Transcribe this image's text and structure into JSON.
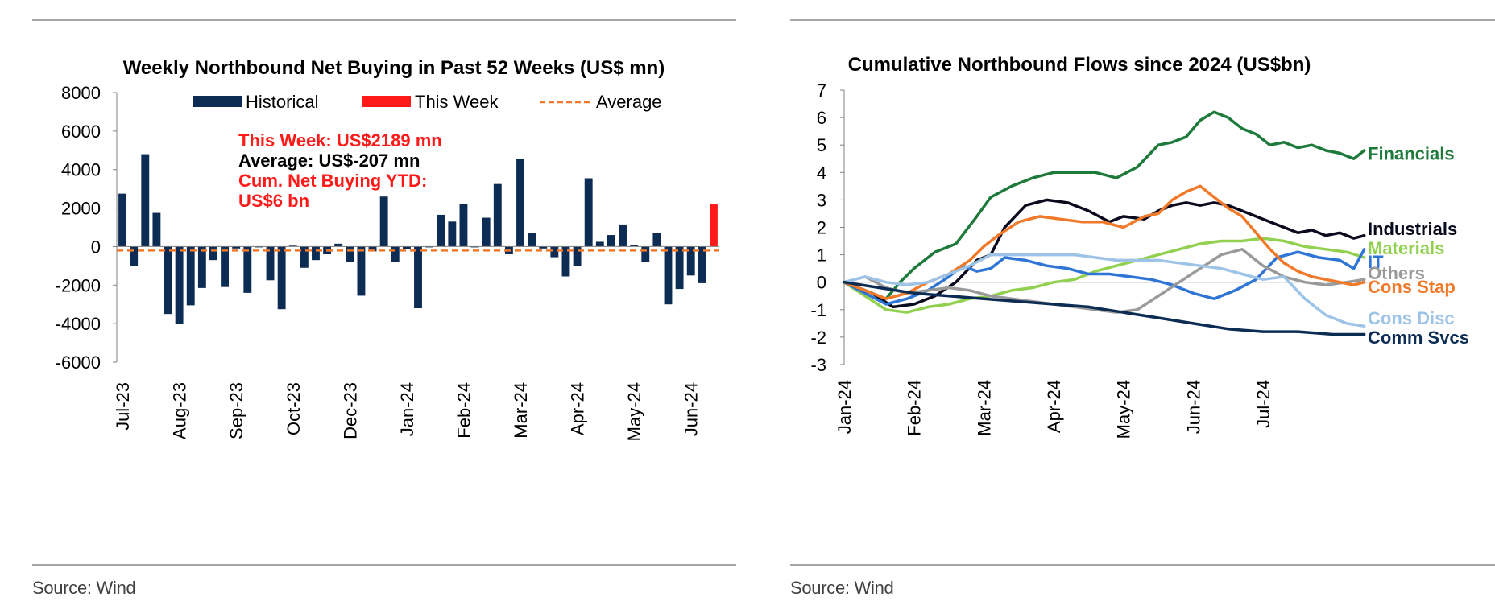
{
  "chart_data": [
    {
      "type": "bar",
      "title": "Weekly Northbound Net Buying in Past 52 Weeks (US$ mn)",
      "legend": [
        "Historical",
        "This Week",
        "Average"
      ],
      "legend_placement": "top",
      "colors": {
        "historical": "#0c2c54",
        "this_week": "#ff1a1a",
        "average": "#f07a2a"
      },
      "ylim": [
        -6000,
        8000
      ],
      "yticks": [
        8000,
        6000,
        4000,
        2000,
        0,
        -2000,
        -4000,
        -6000
      ],
      "xtick_labels": [
        "Jul-23",
        "Aug-23",
        "Sep-23",
        "Oct-23",
        "Dec-23",
        "Jan-24",
        "Feb-24",
        "Mar-24",
        "Apr-24",
        "May-24",
        "Jun-24"
      ],
      "xtick_positions": [
        0,
        5,
        10,
        15,
        20,
        25,
        30,
        35,
        40,
        45,
        50
      ],
      "values": [
        2750,
        -1000,
        4800,
        1750,
        -3500,
        -4000,
        -3050,
        -2150,
        -700,
        -2100,
        -100,
        -2400,
        0,
        -1750,
        -3250,
        50,
        -1100,
        -700,
        -400,
        150,
        -800,
        -2550,
        -250,
        2600,
        -800,
        -150,
        -3200,
        0,
        1650,
        1300,
        2200,
        0,
        1500,
        3250,
        -400,
        4550,
        700,
        -100,
        -550,
        -1550,
        -1000,
        3550,
        250,
        600,
        1150,
        100,
        -800,
        700,
        -3000,
        -2200,
        -1500,
        -1900,
        2189
      ],
      "average": -207,
      "annotations": {
        "this_week": "This Week: US$2189 mn",
        "average": "Average: US$-207 mn",
        "ytd_line1": "Cum. Net Buying YTD:",
        "ytd_line2": "US$6 bn"
      }
    },
    {
      "type": "line",
      "title": "Cumulative Northbound Flows since 2024 (US$bn)",
      "ylim": [
        -3,
        7
      ],
      "yticks": [
        7,
        6,
        5,
        4,
        3,
        2,
        1,
        0,
        -1,
        -2,
        -3
      ],
      "xlim": [
        0,
        7.5
      ],
      "xtick_labels": [
        "Jan-24",
        "Feb-24",
        "Mar-24",
        "Apr-24",
        "May-24",
        "Jun-24",
        "Jul-24"
      ],
      "series": [
        {
          "name": "Financials",
          "color": "#1e7a3a",
          "x": [
            0,
            0.3,
            0.6,
            0.8,
            1.0,
            1.3,
            1.6,
            1.9,
            2.1,
            2.4,
            2.7,
            3.0,
            3.3,
            3.6,
            3.9,
            4.2,
            4.5,
            4.7,
            4.9,
            5.1,
            5.3,
            5.5,
            5.7,
            5.9,
            6.1,
            6.3,
            6.5,
            6.7,
            6.9,
            7.1,
            7.3,
            7.45
          ],
          "y": [
            0,
            -0.3,
            -0.6,
            0,
            0.5,
            1.1,
            1.4,
            2.4,
            3.1,
            3.5,
            3.8,
            4.0,
            4.0,
            4.0,
            3.8,
            4.2,
            5.0,
            5.1,
            5.3,
            5.9,
            6.2,
            6.0,
            5.6,
            5.4,
            5.0,
            5.1,
            4.9,
            5.0,
            4.8,
            4.7,
            4.5,
            4.8
          ]
        },
        {
          "name": "Industrials",
          "color": "#0a0a1e",
          "x": [
            0,
            0.4,
            0.7,
            1.0,
            1.3,
            1.6,
            1.9,
            2.1,
            2.3,
            2.6,
            2.9,
            3.2,
            3.5,
            3.8,
            4.0,
            4.3,
            4.5,
            4.7,
            4.9,
            5.1,
            5.3,
            5.5,
            5.7,
            5.9,
            6.1,
            6.3,
            6.5,
            6.7,
            6.9,
            7.1,
            7.3,
            7.45
          ],
          "y": [
            0,
            -0.4,
            -0.9,
            -0.8,
            -0.5,
            0,
            0.8,
            1.0,
            2.0,
            2.8,
            3.0,
            2.9,
            2.6,
            2.2,
            2.4,
            2.3,
            2.6,
            2.8,
            2.9,
            2.8,
            2.9,
            2.8,
            2.6,
            2.4,
            2.2,
            2.0,
            1.8,
            1.9,
            1.7,
            1.8,
            1.6,
            1.7
          ]
        },
        {
          "name": "Materials",
          "color": "#92d050",
          "x": [
            0,
            0.3,
            0.6,
            0.9,
            1.2,
            1.5,
            1.8,
            2.1,
            2.4,
            2.7,
            3.0,
            3.3,
            3.6,
            3.9,
            4.2,
            4.5,
            4.8,
            5.1,
            5.4,
            5.7,
            6.0,
            6.3,
            6.6,
            6.9,
            7.2,
            7.45
          ],
          "y": [
            0,
            -0.5,
            -1.0,
            -1.1,
            -0.9,
            -0.8,
            -0.6,
            -0.5,
            -0.3,
            -0.2,
            0,
            0.1,
            0.4,
            0.6,
            0.8,
            1.0,
            1.2,
            1.4,
            1.5,
            1.5,
            1.6,
            1.5,
            1.3,
            1.2,
            1.1,
            0.9
          ]
        },
        {
          "name": "IT",
          "color": "#2e75d6",
          "x": [
            0,
            0.3,
            0.6,
            0.9,
            1.2,
            1.5,
            1.7,
            1.9,
            2.1,
            2.3,
            2.6,
            2.9,
            3.2,
            3.5,
            3.8,
            4.1,
            4.4,
            4.7,
            5.0,
            5.3,
            5.6,
            5.9,
            6.2,
            6.5,
            6.8,
            7.1,
            7.3,
            7.45
          ],
          "y": [
            0,
            -0.4,
            -0.8,
            -0.6,
            -0.3,
            0.2,
            0.6,
            0.4,
            0.5,
            0.9,
            0.8,
            0.6,
            0.5,
            0.3,
            0.3,
            0.2,
            0.1,
            -0.1,
            -0.4,
            -0.6,
            -0.3,
            0.1,
            0.9,
            1.1,
            0.9,
            0.8,
            0.5,
            1.2
          ]
        },
        {
          "name": "Others",
          "color": "#9a9a9a",
          "x": [
            0,
            0.3,
            0.6,
            0.9,
            1.2,
            1.5,
            1.8,
            2.1,
            2.4,
            2.7,
            3.0,
            3.3,
            3.6,
            3.9,
            4.2,
            4.5,
            4.8,
            5.1,
            5.4,
            5.7,
            6.0,
            6.3,
            6.6,
            6.9,
            7.2,
            7.45
          ],
          "y": [
            0,
            0.2,
            -0.2,
            -0.4,
            -0.3,
            -0.2,
            -0.3,
            -0.5,
            -0.6,
            -0.7,
            -0.8,
            -0.9,
            -1.0,
            -1.1,
            -1.0,
            -0.5,
            0,
            0.5,
            1.0,
            1.2,
            0.6,
            0.2,
            0,
            -0.1,
            0,
            0.1
          ]
        },
        {
          "name": "Cons Stap",
          "color": "#f07a2a",
          "x": [
            0,
            0.3,
            0.6,
            0.9,
            1.2,
            1.5,
            1.8,
            2.0,
            2.2,
            2.5,
            2.8,
            3.1,
            3.4,
            3.7,
            4.0,
            4.3,
            4.5,
            4.7,
            4.9,
            5.1,
            5.3,
            5.5,
            5.7,
            5.9,
            6.1,
            6.3,
            6.5,
            6.7,
            6.9,
            7.1,
            7.3,
            7.45
          ],
          "y": [
            0,
            -0.3,
            -0.6,
            -0.4,
            0,
            0.3,
            0.8,
            1.3,
            1.7,
            2.2,
            2.4,
            2.3,
            2.2,
            2.2,
            2.0,
            2.4,
            2.5,
            3.0,
            3.3,
            3.5,
            3.1,
            2.7,
            2.4,
            1.8,
            1.2,
            0.7,
            0.4,
            0.2,
            0.1,
            0,
            -0.1,
            0
          ]
        },
        {
          "name": "Cons Disc",
          "color": "#9dc3e6",
          "x": [
            0,
            0.3,
            0.6,
            0.9,
            1.2,
            1.5,
            1.8,
            2.1,
            2.4,
            2.7,
            3.0,
            3.3,
            3.6,
            3.9,
            4.2,
            4.5,
            4.8,
            5.1,
            5.4,
            5.7,
            6.0,
            6.3,
            6.6,
            6.9,
            7.2,
            7.45
          ],
          "y": [
            0,
            0.2,
            0,
            -0.1,
            0,
            0.3,
            0.6,
            1.0,
            1.0,
            1.0,
            1.0,
            1.0,
            0.9,
            0.8,
            0.8,
            0.8,
            0.7,
            0.6,
            0.5,
            0.3,
            0.1,
            0.2,
            -0.6,
            -1.2,
            -1.5,
            -1.6
          ]
        },
        {
          "name": "Comm Svcs",
          "color": "#0c2c54",
          "x": [
            0,
            0.5,
            1.0,
            1.5,
            2.0,
            2.5,
            3.0,
            3.5,
            4.0,
            4.5,
            5.0,
            5.5,
            6.0,
            6.5,
            7.0,
            7.45
          ],
          "y": [
            0,
            -0.2,
            -0.4,
            -0.5,
            -0.6,
            -0.7,
            -0.8,
            -0.9,
            -1.1,
            -1.3,
            -1.5,
            -1.7,
            -1.8,
            -1.8,
            -1.9,
            -1.9
          ]
        }
      ]
    }
  ],
  "footer": {
    "left_source": "Source: Wind",
    "right_source": "Source: Wind"
  }
}
